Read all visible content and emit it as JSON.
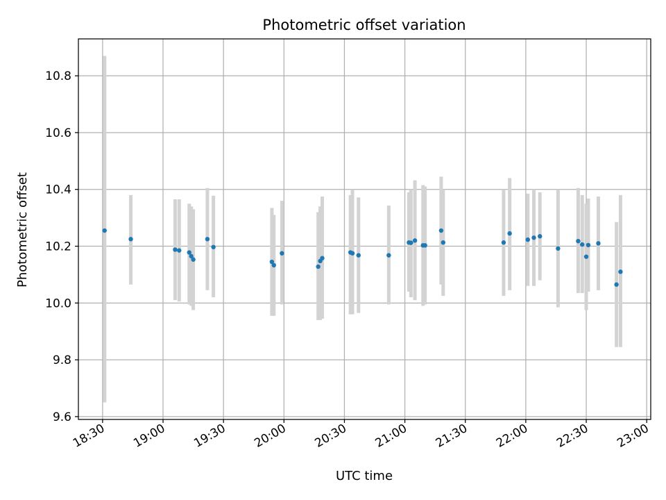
{
  "chart_data": {
    "type": "scatter",
    "title": "Photometric offset variation",
    "xlabel": "UTC time",
    "ylabel": "Photometric offset",
    "xlim": [
      "18:18",
      "23:02"
    ],
    "ylim": [
      9.59,
      10.93
    ],
    "x_ticks": [
      "18:30",
      "19:00",
      "19:30",
      "20:00",
      "20:30",
      "21:00",
      "21:30",
      "22:00",
      "22:30",
      "23:00"
    ],
    "y_ticks": [
      "9.6",
      "9.8",
      "10.0",
      "10.2",
      "10.4",
      "10.6",
      "10.8"
    ],
    "grid": true,
    "marker_color": "#1f77b4",
    "errorbar_color": "#d3d3d3",
    "points": [
      {
        "time": "18:31",
        "y": 10.255,
        "lo": 9.65,
        "hi": 10.87
      },
      {
        "time": "18:44",
        "y": 10.225,
        "lo": 10.065,
        "hi": 10.38
      },
      {
        "time": "19:06",
        "y": 10.188,
        "lo": 10.01,
        "hi": 10.365
      },
      {
        "time": "19:08",
        "y": 10.185,
        "lo": 10.005,
        "hi": 10.365
      },
      {
        "time": "19:13",
        "y": 10.178,
        "lo": 9.995,
        "hi": 10.35
      },
      {
        "time": "19:14",
        "y": 10.165,
        "lo": 9.99,
        "hi": 10.34
      },
      {
        "time": "19:15",
        "y": 10.153,
        "lo": 9.975,
        "hi": 10.33
      },
      {
        "time": "19:22",
        "y": 10.225,
        "lo": 10.045,
        "hi": 10.405
      },
      {
        "time": "19:25",
        "y": 10.197,
        "lo": 10.02,
        "hi": 10.378
      },
      {
        "time": "19:54",
        "y": 10.145,
        "lo": 9.955,
        "hi": 10.335
      },
      {
        "time": "19:55",
        "y": 10.133,
        "lo": 9.955,
        "hi": 10.31
      },
      {
        "time": "19:59",
        "y": 10.175,
        "lo": 9.995,
        "hi": 10.36
      },
      {
        "time": "20:17",
        "y": 10.128,
        "lo": 9.94,
        "hi": 10.32
      },
      {
        "time": "20:18",
        "y": 10.148,
        "lo": 9.94,
        "hi": 10.34
      },
      {
        "time": "20:19",
        "y": 10.158,
        "lo": 9.945,
        "hi": 10.375
      },
      {
        "time": "20:33",
        "y": 10.178,
        "lo": 9.96,
        "hi": 10.38
      },
      {
        "time": "20:34",
        "y": 10.175,
        "lo": 9.96,
        "hi": 10.4
      },
      {
        "time": "20:37",
        "y": 10.168,
        "lo": 9.965,
        "hi": 10.372
      },
      {
        "time": "20:52",
        "y": 10.168,
        "lo": 9.995,
        "hi": 10.343
      },
      {
        "time": "21:02",
        "y": 10.213,
        "lo": 10.04,
        "hi": 10.39
      },
      {
        "time": "21:03",
        "y": 10.212,
        "lo": 10.02,
        "hi": 10.4
      },
      {
        "time": "21:05",
        "y": 10.22,
        "lo": 10.01,
        "hi": 10.432
      },
      {
        "time": "21:09",
        "y": 10.203,
        "lo": 9.99,
        "hi": 10.415
      },
      {
        "time": "21:10",
        "y": 10.203,
        "lo": 9.995,
        "hi": 10.41
      },
      {
        "time": "21:18",
        "y": 10.255,
        "lo": 10.065,
        "hi": 10.445
      },
      {
        "time": "21:19",
        "y": 10.213,
        "lo": 10.025,
        "hi": 10.4
      },
      {
        "time": "21:49",
        "y": 10.213,
        "lo": 10.025,
        "hi": 10.4
      },
      {
        "time": "21:52",
        "y": 10.245,
        "lo": 10.045,
        "hi": 10.44
      },
      {
        "time": "22:01",
        "y": 10.223,
        "lo": 10.06,
        "hi": 10.385
      },
      {
        "time": "22:04",
        "y": 10.23,
        "lo": 10.06,
        "hi": 10.4
      },
      {
        "time": "22:07",
        "y": 10.235,
        "lo": 10.08,
        "hi": 10.39
      },
      {
        "time": "22:16",
        "y": 10.192,
        "lo": 9.985,
        "hi": 10.4
      },
      {
        "time": "22:26",
        "y": 10.218,
        "lo": 10.035,
        "hi": 10.405
      },
      {
        "time": "22:28",
        "y": 10.206,
        "lo": 10.035,
        "hi": 10.38
      },
      {
        "time": "22:30",
        "y": 10.163,
        "lo": 9.975,
        "hi": 10.35
      },
      {
        "time": "22:31",
        "y": 10.204,
        "lo": 10.04,
        "hi": 10.368
      },
      {
        "time": "22:36",
        "y": 10.21,
        "lo": 10.045,
        "hi": 10.375
      },
      {
        "time": "22:45",
        "y": 10.065,
        "lo": 9.845,
        "hi": 10.285
      },
      {
        "time": "22:47",
        "y": 10.11,
        "lo": 9.845,
        "hi": 10.38
      }
    ]
  }
}
